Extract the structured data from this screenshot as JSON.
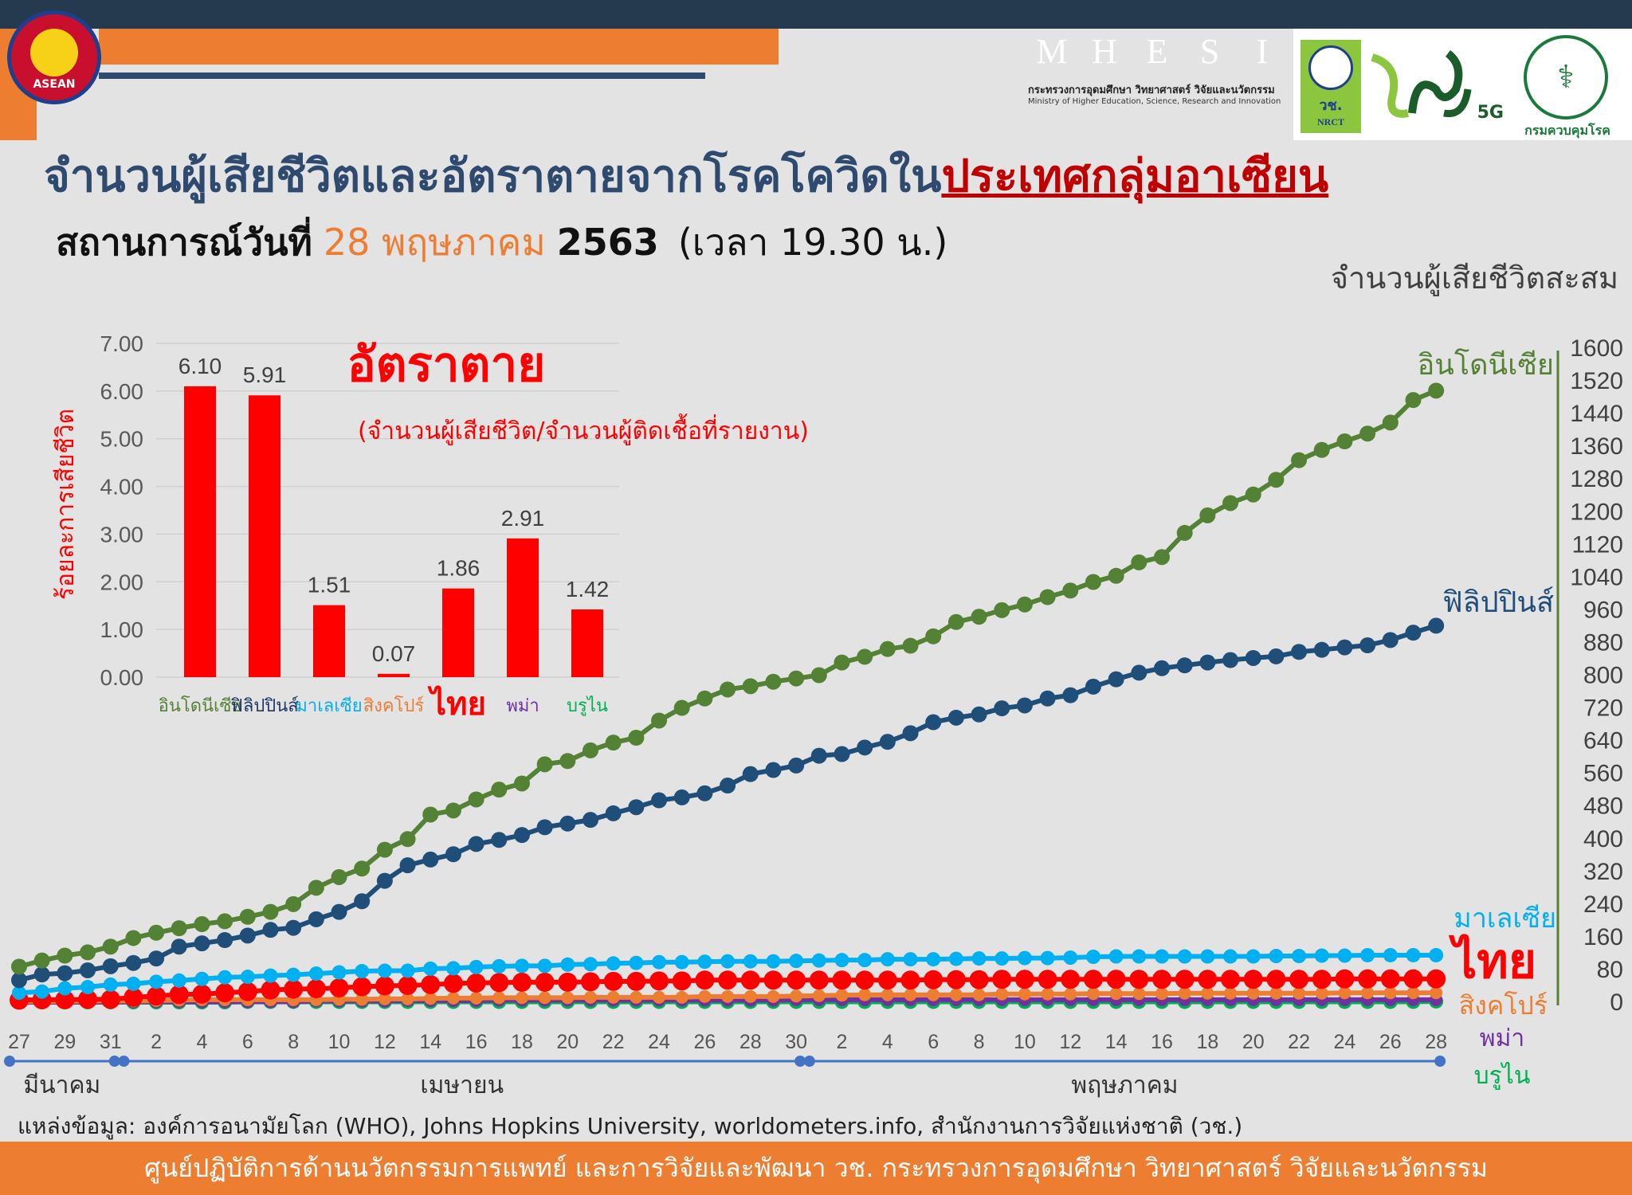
{
  "header": {
    "asean_logo_text": "ASEAN",
    "mhesi_letters": [
      "M",
      "H",
      "E",
      "S",
      "I"
    ],
    "mhesi_colors": [
      "#2e4aa0",
      "#7b3fa0",
      "#f26a2e",
      "#f0b323",
      "#1a7a3c"
    ],
    "mhesi_thai": "กระทรวงการอุดมศึกษา วิทยาศาสตร์ วิจัยและนวัตกรรม",
    "mhesi_english": "Ministry of Higher Education, Science, Research and Innovation",
    "nrct_thai": "วช.",
    "nrct_english": "NRCT",
    "anniv_logo_text": "5G",
    "moph_text": "กรมควบคุมโรค"
  },
  "title": {
    "main": "จำนวนผู้เสียชีวิตและอัตราตายจากโรคโควิดใน",
    "highlight": "ประเทศกลุ่มอาเซียน"
  },
  "subtitle": {
    "prefix": "สถานการณ์วันที่",
    "date": "28 พฤษภาคม",
    "year": "2563",
    "time": "(เวลา 19.30 น.)"
  },
  "chart_data": [
    {
      "type": "bar",
      "title": "อัตราตาย",
      "subtitle": "(จำนวนผู้เสียชีวิต/จำนวนผู้ติดเชื้อที่รายงาน)",
      "ylabel": "ร้อยละการเสียชีวิต",
      "ylim": [
        0,
        7
      ],
      "y_tick_labels": [
        "0.00",
        "1.00",
        "2.00",
        "3.00",
        "4.00",
        "5.00",
        "6.00",
        "7.00"
      ],
      "grid": true,
      "categories": [
        "อินโดนีเซีย",
        "ฟิลิปปินส์",
        "มาเลเซีย",
        "สิงคโปร์",
        "ไทย",
        "พม่า",
        "บรูไน"
      ],
      "category_colors": [
        "#548235",
        "#1f3864",
        "#00b0f0",
        "#ed7d31",
        "#ff0000",
        "#7030a0",
        "#00b050"
      ],
      "values": [
        6.1,
        5.91,
        1.51,
        0.07,
        1.86,
        2.91,
        1.42
      ],
      "data_labels": [
        "6.10",
        "5.91",
        "1.51",
        "0.07",
        "1.86",
        "2.91",
        "1.42"
      ],
      "bar_color": "#ff0000"
    },
    {
      "type": "line",
      "ylabel": "จำนวนผู้เสียชีวิตสะสม",
      "ylim": [
        0,
        1600
      ],
      "y_tick_step": 80,
      "y_axis_side": "right",
      "months": [
        {
          "label": "มีนาคม",
          "days": [
            27,
            28,
            29,
            30,
            31
          ]
        },
        {
          "label": "เมษายน",
          "days": [
            1,
            2,
            3,
            4,
            5,
            6,
            7,
            8,
            9,
            10,
            11,
            12,
            13,
            14,
            15,
            16,
            17,
            18,
            19,
            20,
            21,
            22,
            23,
            24,
            25,
            26,
            27,
            28,
            29,
            30
          ]
        },
        {
          "label": "พฤษภาคม",
          "days": [
            1,
            2,
            3,
            4,
            5,
            6,
            7,
            8,
            9,
            10,
            11,
            12,
            13,
            14,
            15,
            16,
            17,
            18,
            19,
            20,
            21,
            22,
            23,
            24,
            25,
            26,
            27,
            28
          ]
        }
      ],
      "x_tick_labels": [
        "27",
        "29",
        "31",
        "2",
        "4",
        "6",
        "8",
        "10",
        "12",
        "14",
        "16",
        "18",
        "20",
        "22",
        "24",
        "26",
        "28",
        "30",
        "2",
        "4",
        "6",
        "8",
        "10",
        "12",
        "14",
        "16",
        "18",
        "20",
        "22",
        "24",
        "26",
        "28"
      ],
      "series": [
        {
          "name": "อินโดนีเซีย",
          "color": "#548235",
          "values": [
            87,
            102,
            114,
            122,
            136,
            157,
            170,
            181,
            191,
            198,
            209,
            221,
            240,
            280,
            306,
            327,
            373,
            399,
            459,
            469,
            496,
            520,
            535,
            582,
            590,
            616,
            635,
            647,
            689,
            720,
            743,
            765,
            773,
            784,
            792,
            800,
            831,
            845,
            864,
            872,
            895,
            930,
            943,
            959,
            973,
            991,
            1007,
            1028,
            1043,
            1076,
            1089,
            1148,
            1191,
            1221,
            1242,
            1278,
            1326,
            1351,
            1372,
            1391,
            1418,
            1473,
            1496
          ]
        },
        {
          "name": "ฟิลิปปินส์",
          "color": "#1f4e79",
          "values": [
            54,
            68,
            71,
            78,
            88,
            96,
            107,
            136,
            144,
            152,
            163,
            177,
            182,
            203,
            221,
            247,
            297,
            335,
            349,
            362,
            387,
            397,
            409,
            428,
            437,
            446,
            462,
            477,
            494,
            501,
            511,
            530,
            558,
            568,
            579,
            603,
            607,
            623,
            637,
            658,
            685,
            696,
            704,
            719,
            726,
            743,
            751,
            772,
            790,
            806,
            817,
            824,
            831,
            837,
            842,
            846,
            857,
            862,
            868,
            873,
            886,
            904,
            921
          ]
        },
        {
          "name": "มาเลเซีย",
          "color": "#00b0f0",
          "values": [
            23,
            26,
            34,
            37,
            43,
            45,
            50,
            53,
            57,
            61,
            62,
            65,
            67,
            70,
            73,
            76,
            77,
            77,
            82,
            83,
            86,
            88,
            89,
            89,
            92,
            93,
            95,
            96,
            98,
            98,
            99,
            100,
            100,
            100,
            101,
            102,
            103,
            103,
            105,
            105,
            105,
            106,
            107,
            107,
            108,
            108,
            109,
            111,
            112,
            112,
            112,
            112,
            112,
            112,
            112,
            113,
            113,
            114,
            114,
            115,
            115,
            115,
            115
          ]
        },
        {
          "name": "ไทย",
          "color": "#ff0000",
          "values": [
            5,
            6,
            6,
            7,
            7,
            12,
            15,
            19,
            20,
            23,
            26,
            30,
            32,
            33,
            35,
            38,
            40,
            41,
            43,
            46,
            47,
            48,
            49,
            49,
            49,
            50,
            51,
            51,
            52,
            52,
            54,
            54,
            54,
            54,
            54,
            54,
            54,
            54,
            54,
            54,
            55,
            55,
            55,
            56,
            56,
            56,
            56,
            56,
            56,
            56,
            56,
            56,
            56,
            56,
            56,
            56,
            56,
            56,
            57,
            57,
            57,
            57,
            57
          ]
        },
        {
          "name": "สิงคโปร์",
          "color": "#ed7d31",
          "values": [
            2,
            2,
            2,
            3,
            3,
            3,
            4,
            5,
            6,
            6,
            6,
            6,
            6,
            6,
            7,
            7,
            8,
            8,
            9,
            10,
            10,
            11,
            11,
            11,
            11,
            12,
            12,
            12,
            12,
            12,
            14,
            14,
            14,
            14,
            15,
            16,
            17,
            18,
            18,
            18,
            18,
            18,
            18,
            20,
            20,
            20,
            20,
            21,
            21,
            21,
            21,
            22,
            22,
            22,
            22,
            22,
            22,
            22,
            23,
            23,
            23,
            23,
            23
          ]
        },
        {
          "name": "พม่า",
          "color": "#7030a0",
          "values": [
            0,
            0,
            0,
            0,
            0,
            1,
            1,
            1,
            1,
            1,
            1,
            1,
            1,
            3,
            3,
            3,
            3,
            4,
            4,
            4,
            4,
            5,
            5,
            5,
            5,
            5,
            5,
            5,
            5,
            5,
            5,
            5,
            5,
            5,
            6,
            6,
            6,
            6,
            6,
            6,
            6,
            6,
            6,
            6,
            6,
            6,
            6,
            6,
            6,
            6,
            6,
            6,
            6,
            6,
            6,
            6,
            6,
            6,
            6,
            6,
            6,
            6,
            6
          ]
        },
        {
          "name": "บรูไน",
          "color": "#00b050",
          "values": [
            0,
            0,
            0,
            0,
            0,
            0,
            0,
            0,
            0,
            0,
            1,
            1,
            1,
            1,
            1,
            1,
            1,
            1,
            1,
            1,
            1,
            1,
            1,
            1,
            1,
            1,
            1,
            1,
            1,
            1,
            1,
            1,
            1,
            1,
            1,
            1,
            1,
            1,
            1,
            1,
            1,
            1,
            1,
            1,
            1,
            1,
            1,
            1,
            1,
            1,
            1,
            1,
            1,
            1,
            1,
            1,
            1,
            1,
            1,
            1,
            1,
            1,
            2
          ]
        }
      ]
    }
  ],
  "source": "แหล่งข้อมูล: องค์การอนามัยโลก (WHO), Johns Hopkins University, worldometers.info, สำนักงานการวิจัยแห่งชาติ (วช.)",
  "footer": "ศูนย์ปฏิบัติการด้านนวัตกรรมการแพทย์ และการวิจัยและพัฒนา  วช.   กระทรวงการอุดมศึกษา วิทยาศาสตร์ วิจัยและนวัตกรรม"
}
